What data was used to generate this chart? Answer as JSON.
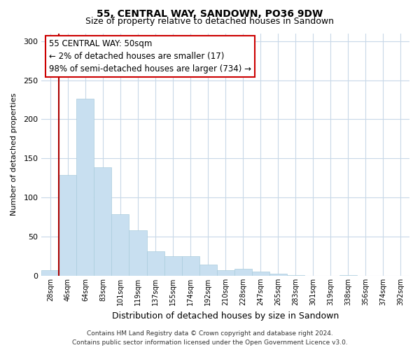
{
  "title": "55, CENTRAL WAY, SANDOWN, PO36 9DW",
  "subtitle": "Size of property relative to detached houses in Sandown",
  "xlabel": "Distribution of detached houses by size in Sandown",
  "ylabel": "Number of detached properties",
  "bar_labels": [
    "28sqm",
    "46sqm",
    "64sqm",
    "83sqm",
    "101sqm",
    "119sqm",
    "137sqm",
    "155sqm",
    "174sqm",
    "192sqm",
    "210sqm",
    "228sqm",
    "247sqm",
    "265sqm",
    "283sqm",
    "301sqm",
    "319sqm",
    "338sqm",
    "356sqm",
    "374sqm",
    "392sqm"
  ],
  "bar_heights": [
    7,
    129,
    226,
    139,
    79,
    58,
    31,
    25,
    25,
    14,
    7,
    9,
    5,
    3,
    1,
    0,
    0,
    1,
    0,
    0,
    0
  ],
  "bar_color": "#c8dff0",
  "marker_line_color": "#aa0000",
  "ylim": [
    0,
    310
  ],
  "yticks": [
    0,
    50,
    100,
    150,
    200,
    250,
    300
  ],
  "annotation_title": "55 CENTRAL WAY: 50sqm",
  "annotation_line1": "← 2% of detached houses are smaller (17)",
  "annotation_line2": "98% of semi-detached houses are larger (734) →",
  "annotation_box_color": "#ffffff",
  "annotation_box_edge": "#cc0000",
  "footer_line1": "Contains HM Land Registry data © Crown copyright and database right 2024.",
  "footer_line2": "Contains public sector information licensed under the Open Government Licence v3.0.",
  "background_color": "#ffffff",
  "grid_color": "#c8d8e8",
  "marker_bar_index": 1
}
